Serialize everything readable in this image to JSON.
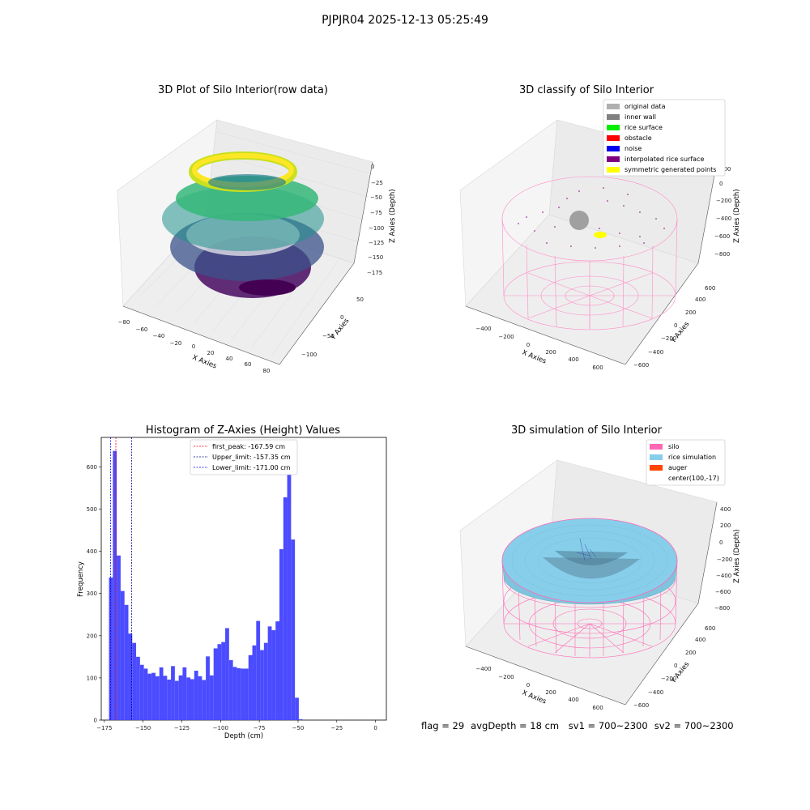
{
  "suptitle": "PJPJR04 2025-12-13 05:25:49",
  "status": {
    "flag": "flag = 29",
    "avg_depth": "avgDepth = 18 cm",
    "sv1": "sv1 = 700~2300",
    "sv2": "sv2 = 700~2300"
  },
  "chart_data": [
    {
      "type": "scatter",
      "title": "3D Plot of Silo Interior(row data)",
      "xlabel": "X Axies",
      "ylabel": "Y Axies",
      "zlabel": "Z Axies (Depth)",
      "x_ticks": [
        "−80",
        "−60",
        "−40",
        "−20",
        "0",
        "20",
        "40",
        "60",
        "80"
      ],
      "y_ticks": [
        "−100",
        "−50",
        "0",
        "50"
      ],
      "z_ticks": [
        "0",
        "−25",
        "−50",
        "−75",
        "−100",
        "−125",
        "−150",
        "−175"
      ],
      "colormap": "viridis"
    },
    {
      "type": "scatter",
      "title": "3D classify of Silo Interior",
      "xlabel": "X Axies",
      "ylabel": "Y Axies",
      "zlabel": "Z Axies (Depth)",
      "x_ticks": [
        "−400",
        "−200",
        "0",
        "200",
        "400",
        "600"
      ],
      "y_ticks": [
        "−600",
        "−400",
        "−200",
        "0",
        "200",
        "400",
        "600"
      ],
      "z_ticks": [
        "200",
        "0",
        "−200",
        "−400",
        "−600",
        "−800"
      ],
      "legend": {
        "position": "upper-right",
        "entries": [
          {
            "label": "original data",
            "color": "#b0b0b0"
          },
          {
            "label": "inner wall",
            "color": "#808080"
          },
          {
            "label": "rice surface",
            "color": "#00ee00"
          },
          {
            "label": "obstacle",
            "color": "#ff0000"
          },
          {
            "label": "noise",
            "color": "#0000ee"
          },
          {
            "label": "interpolated rice surface",
            "color": "#800080"
          },
          {
            "label": "symmetric generated points",
            "color": "#ffff00"
          }
        ]
      }
    },
    {
      "type": "bar",
      "title": "Histogram of Z-Axies (Height) Values",
      "xlabel": "Depth (cm)",
      "ylabel": "Frequency",
      "xlim": [
        -177,
        7
      ],
      "ylim": [
        0,
        670
      ],
      "x_ticks": [
        -175,
        -150,
        -125,
        -100,
        -75,
        -50,
        -25,
        0
      ],
      "y_ticks": [
        0,
        100,
        200,
        300,
        400,
        500,
        600
      ],
      "bin_width": 2.5,
      "bin_start": -172,
      "bar_color": "#4b4bff",
      "values": [
        338,
        638,
        390,
        306,
        273,
        205,
        183,
        150,
        131,
        122,
        110,
        112,
        104,
        125,
        105,
        96,
        128,
        93,
        106,
        125,
        101,
        97,
        117,
        104,
        95,
        151,
        106,
        170,
        180,
        185,
        218,
        142,
        126,
        123,
        122,
        122,
        154,
        177,
        235,
        166,
        183,
        222,
        213,
        234,
        405,
        528,
        638,
        428,
        53,
        2
      ],
      "vlines": [
        {
          "label": "first_peak: -167.59 cm",
          "x": -167.59,
          "color": "#ff0000"
        },
        {
          "label": "Upper_limit: -157.35 cm",
          "x": -157.35,
          "color": "#00008b"
        },
        {
          "label": "Lower_limit: -171.00 cm",
          "x": -171.0,
          "color": "#0000ff"
        }
      ],
      "legend": {
        "position": "top-center"
      }
    },
    {
      "type": "scatter",
      "title": "3D simulation of Silo Interior",
      "xlabel": "X Axies",
      "ylabel": "Y Axies",
      "zlabel": "Z Axies (Depth)",
      "x_ticks": [
        "−400",
        "−200",
        "0",
        "200",
        "400",
        "600"
      ],
      "y_ticks": [
        "−600",
        "−400",
        "−200",
        "0",
        "200",
        "400",
        "600"
      ],
      "z_ticks": [
        "400",
        "200",
        "0",
        "−200",
        "−400",
        "−600",
        "−800"
      ],
      "legend": {
        "position": "upper-right",
        "entries": [
          {
            "label": "silo",
            "color": "#ff69b4"
          },
          {
            "label": "rice simulation",
            "color": "#87ceeb"
          },
          {
            "label": "auger",
            "color": "#ff4500"
          },
          {
            "label": "center(100,-17)",
            "color": ""
          }
        ]
      }
    }
  ]
}
